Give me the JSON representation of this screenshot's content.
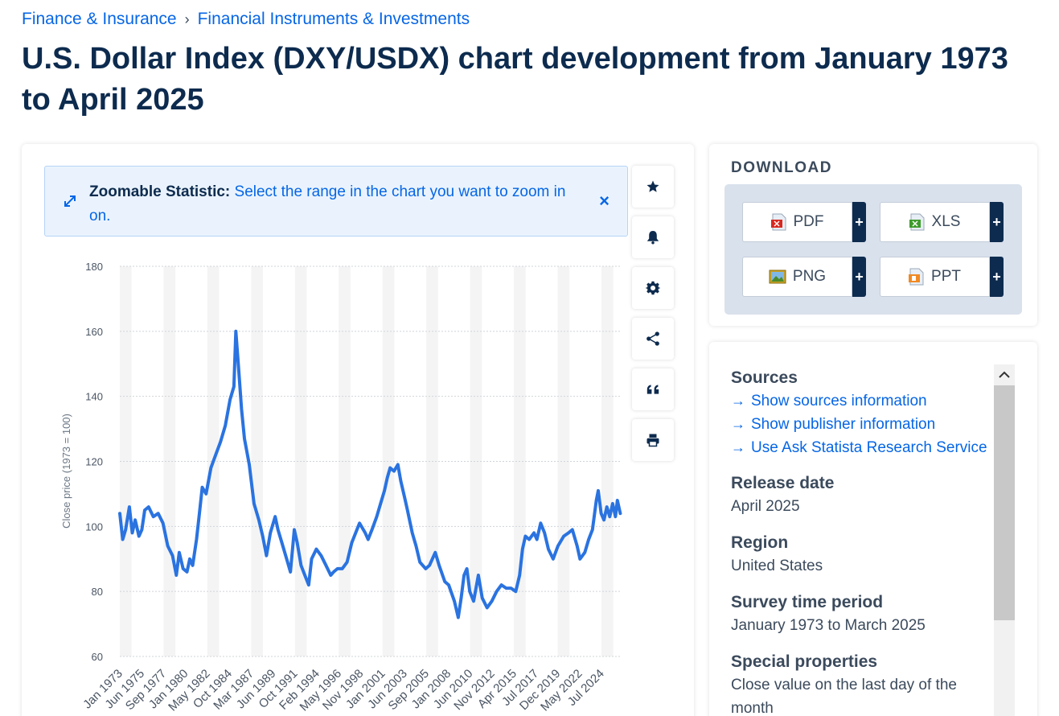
{
  "breadcrumb": {
    "items": [
      "Finance & Insurance",
      "Financial Instruments & Investments"
    ],
    "separator": "›"
  },
  "title": "U.S. Dollar Index (DXY/USDX) chart development from January 1973 to April 2025",
  "zoom_banner": {
    "label": "Zoomable Statistic:",
    "text": "Select the range in the chart you want to zoom in on.",
    "close": "×"
  },
  "toolbar": {
    "icons": [
      "star-icon",
      "bell-icon",
      "gear-icon",
      "share-icon",
      "quote-icon",
      "print-icon"
    ]
  },
  "download": {
    "title": "DOWNLOAD",
    "buttons": [
      {
        "label": "PDF",
        "icon": "pdf-file-icon",
        "plus": "+"
      },
      {
        "label": "XLS",
        "icon": "xls-file-icon",
        "plus": "+"
      },
      {
        "label": "PNG",
        "icon": "png-file-icon",
        "plus": "+"
      },
      {
        "label": "PPT",
        "icon": "ppt-file-icon",
        "plus": "+"
      }
    ]
  },
  "info": {
    "sources_heading": "Sources",
    "links": [
      "Show sources information",
      "Show publisher information",
      "Use Ask Statista Research Service"
    ],
    "release_date_heading": "Release date",
    "release_date": "April 2025",
    "region_heading": "Region",
    "region": "United States",
    "survey_heading": "Survey time period",
    "survey": "January 1973 to March 2025",
    "special_heading": "Special properties",
    "special": "Close value on the last day of the month"
  },
  "colors": {
    "accent": "#0666e5",
    "title": "#0d2b4e",
    "series": "#2a73e0",
    "band": "#f4f4f4"
  },
  "chart_data": {
    "type": "line",
    "ylabel": "Close price (1973 = 100)",
    "xlabel": "",
    "ylim": [
      60,
      180
    ],
    "yticks": [
      60,
      80,
      100,
      120,
      140,
      160,
      180
    ],
    "xticks": [
      "Jan 1973",
      "Jun 1975",
      "Sep 1977",
      "Jan 1980",
      "May 1982",
      "Oct 1984",
      "Mar 1987",
      "Jun 1989",
      "Oct 1991",
      "Feb 1994",
      "May 1996",
      "Nov 1998",
      "Jan 2001",
      "Jun 2003",
      "Sep 2005",
      "Jan 2008",
      "Jun 2010",
      "Nov 2012",
      "Apr 2015",
      "Jul 2017",
      "Dec 2019",
      "May 2022",
      "Jul 2024"
    ],
    "grid": true,
    "series": [
      {
        "x": [
          1973.0,
          1973.3,
          1973.6,
          1974.0,
          1974.3,
          1974.6,
          1975.0,
          1975.3,
          1975.6,
          1976.0,
          1976.5,
          1977.0,
          1977.5,
          1978.0,
          1978.5,
          1978.9,
          1979.2,
          1979.6,
          1980.0,
          1980.3,
          1980.6,
          1981.0,
          1981.3,
          1981.6,
          1982.0,
          1982.5,
          1983.0,
          1983.5,
          1984.0,
          1984.5,
          1984.9,
          1985.1,
          1985.4,
          1985.7,
          1986.0,
          1986.5,
          1987.0,
          1987.5,
          1987.9,
          1988.3,
          1988.7,
          1989.2,
          1989.5,
          1989.9,
          1990.4,
          1990.8,
          1991.2,
          1991.5,
          1991.9,
          1992.3,
          1992.7,
          1993.0,
          1993.5,
          1994.0,
          1994.5,
          1995.0,
          1995.3,
          1995.7,
          1996.2,
          1996.7,
          1997.2,
          1997.6,
          1998.0,
          1998.6,
          1998.9,
          1999.3,
          1999.8,
          2000.2,
          2000.6,
          2000.9,
          2001.2,
          2001.6,
          2002.0,
          2002.3,
          2002.7,
          2003.0,
          2003.5,
          2003.9,
          2004.3,
          2004.9,
          2005.3,
          2005.9,
          2006.3,
          2006.9,
          2007.3,
          2007.9,
          2008.3,
          2008.6,
          2008.9,
          2009.2,
          2009.5,
          2009.9,
          2010.4,
          2010.8,
          2011.3,
          2011.8,
          2012.3,
          2012.8,
          2013.3,
          2013.8,
          2014.3,
          2014.7,
          2015.0,
          2015.3,
          2015.7,
          2016.2,
          2016.5,
          2016.9,
          2017.3,
          2017.7,
          2018.2,
          2018.7,
          2019.3,
          2019.8,
          2020.2,
          2020.7,
          2021.0,
          2021.5,
          2021.9,
          2022.3,
          2022.7,
          2022.9,
          2023.2,
          2023.5,
          2023.8,
          2024.1,
          2024.4,
          2024.7,
          2024.9,
          2025.2
        ],
        "values": [
          104,
          96,
          99,
          106,
          98,
          102,
          97,
          99,
          105,
          106,
          103,
          104,
          101,
          94,
          91,
          85,
          92,
          87,
          86,
          90,
          88,
          96,
          104,
          112,
          110,
          118,
          122,
          126,
          131,
          139,
          143,
          160,
          148,
          136,
          127,
          119,
          107,
          102,
          97,
          91,
          98,
          103,
          99,
          95,
          90,
          86,
          99,
          95,
          88,
          85,
          82,
          90,
          93,
          91,
          88,
          85,
          86,
          87,
          87,
          89,
          95,
          98,
          101,
          98,
          96,
          99,
          103,
          107,
          111,
          115,
          118,
          117,
          119,
          114,
          109,
          105,
          98,
          94,
          89,
          87,
          88,
          92,
          88,
          83,
          82,
          77,
          72,
          78,
          85,
          87,
          80,
          77,
          85,
          78,
          75,
          77,
          80,
          82,
          81,
          81,
          80,
          85,
          93,
          97,
          96,
          98,
          96,
          101,
          98,
          93,
          90,
          94,
          97,
          98,
          99,
          94,
          90,
          92,
          96,
          99,
          108,
          111,
          104,
          102,
          106,
          103,
          107,
          103,
          108,
          104
        ]
      }
    ]
  }
}
